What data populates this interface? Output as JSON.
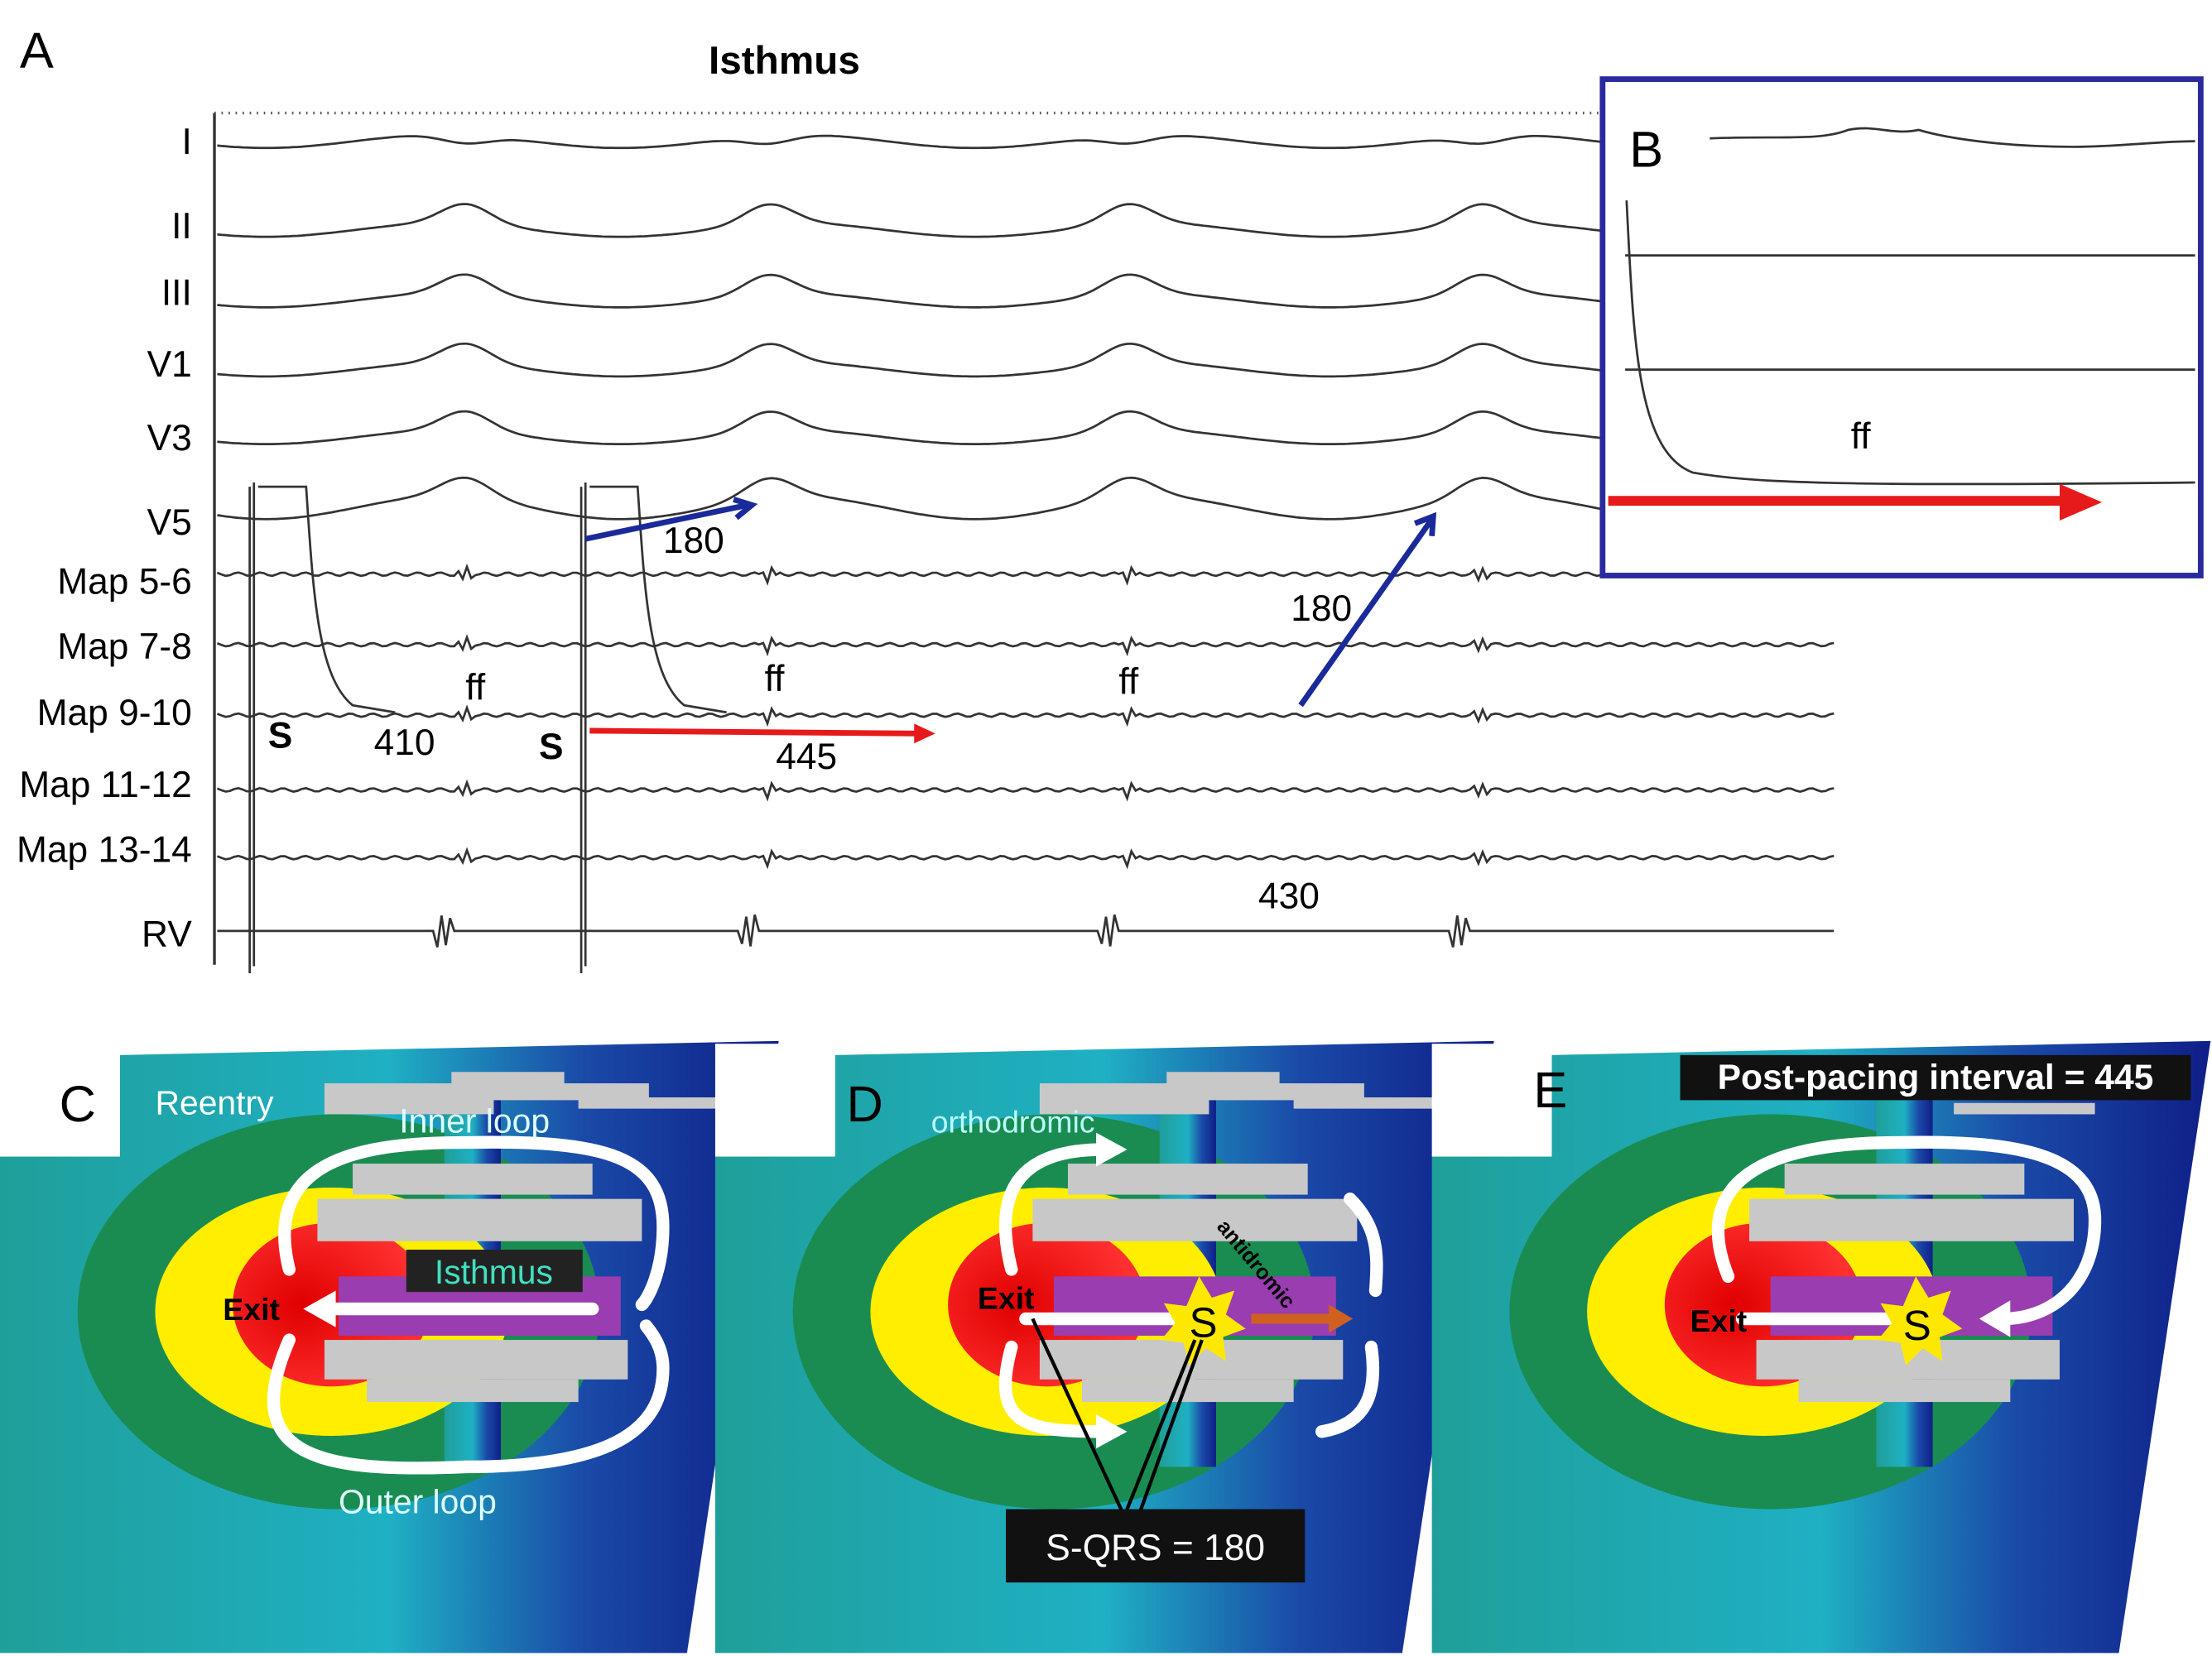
{
  "panel_a": {
    "label": "A",
    "title": "Isthmus",
    "leads": [
      "I",
      "II",
      "III",
      "V1",
      "V3",
      "V5",
      "Map 5-6",
      "Map 7-8",
      "Map 9-10",
      "Map 11-12",
      "Map 13-14",
      "RV"
    ],
    "annotations": [
      "180",
      "180",
      "410",
      "445",
      "430",
      "ff",
      "ff",
      "ff",
      "S",
      "S"
    ]
  },
  "panel_b": {
    "label": "B",
    "annotation": "ff"
  },
  "panel_c": {
    "label": "C",
    "texts": [
      "Reentry",
      "Inner loop",
      "Isthmus",
      "Exit",
      "Outer loop"
    ]
  },
  "panel_d": {
    "label": "D",
    "texts": [
      "orthodromic",
      "antidromic",
      "Exit",
      "S",
      "S-QRS = 180"
    ]
  },
  "panel_e": {
    "label": "E",
    "texts": [
      "Post-pacing interval = 445",
      "Exit",
      "S"
    ]
  }
}
